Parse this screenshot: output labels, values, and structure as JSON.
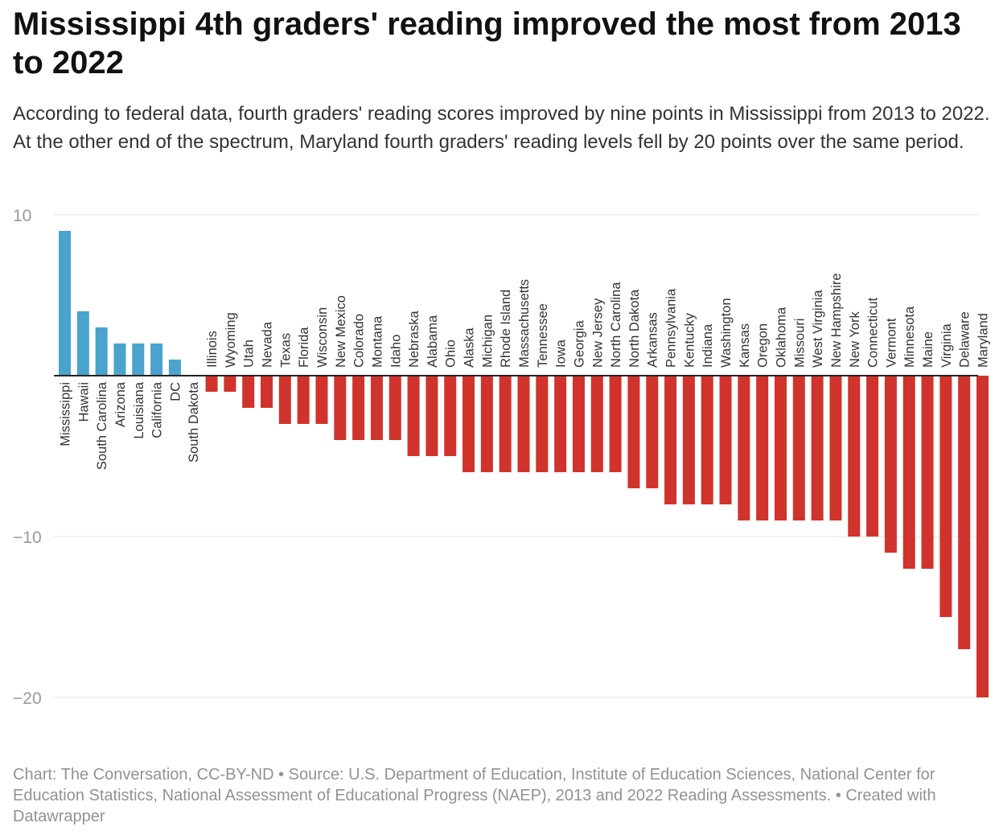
{
  "title": "Mississippi 4th graders' reading improved the most from 2013 to 2022",
  "subtitle": "According to federal data, fourth graders' reading scores improved by nine points in Mississippi from 2013 to 2022. At the other end of the spectrum, Maryland fourth graders' reading levels fell by 20 points over the same period.",
  "footer": "Chart: The Conversation, CC-BY-ND • Source: U.S. Department of Education, Institute of Education Sciences, National Center for Education Statistics, National Assessment of Educational Progress (NAEP), 2013 and 2022 Reading Assessments. • Created with Datawrapper",
  "colors": {
    "positive": "#4aa3cc",
    "negative": "#d0332b",
    "grid": "#e6e6e6",
    "axis": "#222222",
    "tick": "#999999",
    "label": "#333333"
  },
  "chart_data": {
    "type": "bar",
    "ylim": [
      -20,
      10
    ],
    "yticks": [
      10,
      -10,
      -20
    ],
    "yticklabels": [
      "10",
      "−10",
      "−20"
    ],
    "grid": true,
    "categories": [
      "Mississippi",
      "Hawaii",
      "South Carolina",
      "Arizona",
      "Louisiana",
      "California",
      "DC",
      "South Dakota",
      "Illinois",
      "Wyoming",
      "Utah",
      "Nevada",
      "Texas",
      "Florida",
      "Wisconsin",
      "New Mexico",
      "Colorado",
      "Montana",
      "Idaho",
      "Nebraska",
      "Alabama",
      "Ohio",
      "Alaska",
      "Michigan",
      "Rhode Island",
      "Massachusetts",
      "Tennessee",
      "Iowa",
      "Georgia",
      "New Jersey",
      "North Carolina",
      "North Dakota",
      "Arkansas",
      "Pennsylvania",
      "Kentucky",
      "Indiana",
      "Washington",
      "Kansas",
      "Oregon",
      "Oklahoma",
      "Missouri",
      "West Virginia",
      "New Hampshire",
      "New York",
      "Connecticut",
      "Vermont",
      "Minnesota",
      "Maine",
      "Virginia",
      "Delaware",
      "Maryland"
    ],
    "values": [
      9,
      4,
      3,
      2,
      2,
      2,
      1,
      0,
      -1,
      -1,
      -2,
      -2,
      -3,
      -3,
      -3,
      -4,
      -4,
      -4,
      -4,
      -5,
      -5,
      -5,
      -6,
      -6,
      -6,
      -6,
      -6,
      -6,
      -6,
      -6,
      -6,
      -7,
      -7,
      -8,
      -8,
      -8,
      -8,
      -9,
      -9,
      -9,
      -9,
      -9,
      -9,
      -10,
      -10,
      -11,
      -12,
      -12,
      -15,
      -17,
      -20
    ]
  }
}
